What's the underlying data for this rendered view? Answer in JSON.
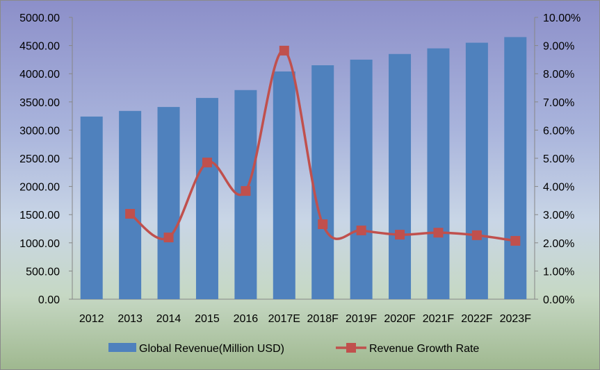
{
  "chart_data": {
    "type": "bar",
    "categories": [
      "2012",
      "2013",
      "2014",
      "2015",
      "2016",
      "2017E",
      "2018F",
      "2019F",
      "2020F",
      "2021F",
      "2022F",
      "2023F"
    ],
    "series": [
      {
        "name": "Global Revenue(Million USD)",
        "type": "bar",
        "axis": "left",
        "color": "#4f81bd",
        "values": [
          3240,
          3340,
          3410,
          3570,
          3710,
          4040,
          4150,
          4250,
          4350,
          4450,
          4550,
          4650
        ]
      },
      {
        "name": "Revenue Growth Rate",
        "type": "line",
        "axis": "right",
        "color": "#c0504d",
        "values": [
          null,
          3.03,
          2.19,
          4.85,
          3.84,
          8.82,
          2.66,
          2.44,
          2.29,
          2.36,
          2.27,
          2.07
        ]
      }
    ],
    "y_left": {
      "range": [
        0,
        5000
      ],
      "ticks": [
        "0.00",
        "500.00",
        "1000.00",
        "1500.00",
        "2000.00",
        "2500.00",
        "3000.00",
        "3500.00",
        "4000.00",
        "4500.00",
        "5000.00"
      ]
    },
    "y_right": {
      "range": [
        0,
        10
      ],
      "ticks": [
        "0.00%",
        "1.00%",
        "2.00%",
        "3.00%",
        "4.00%",
        "5.00%",
        "6.00%",
        "7.00%",
        "8.00%",
        "9.00%",
        "10.00%"
      ]
    },
    "legend": "bottom",
    "grid": false
  }
}
